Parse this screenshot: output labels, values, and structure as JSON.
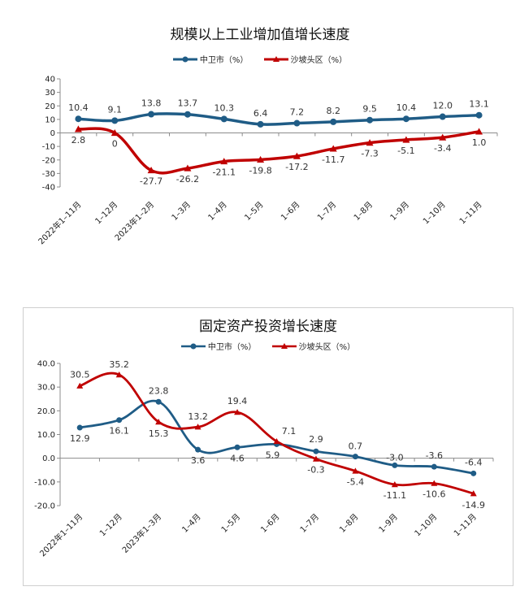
{
  "chart_data": [
    {
      "type": "line",
      "title": "规模以上工业增加值增长速度",
      "categories": [
        "2022年1–11月",
        "1–12月",
        "2023年1–2月",
        "1–3月",
        "1–4月",
        "1–5月",
        "1–6月",
        "1–7月",
        "1–8月",
        "1–9月",
        "1–10月",
        "1–11月"
      ],
      "series": [
        {
          "name": "中卫市（%）",
          "values": [
            10.4,
            9.1,
            13.8,
            13.7,
            10.3,
            6.4,
            7.2,
            8.2,
            9.5,
            10.4,
            12.0,
            13.1
          ],
          "labels": [
            "10.4",
            "9.1",
            "13.8",
            "13.7",
            "10.3",
            "6.4",
            "7.2",
            "8.2",
            "9.5",
            "10.4",
            "12.0",
            "13.1"
          ],
          "color": "#1f5c86"
        },
        {
          "name": "沙坡头区（%）",
          "values": [
            2.8,
            0,
            -27.7,
            -26.2,
            -21.1,
            -19.8,
            -17.2,
            -11.7,
            -7.3,
            -5.1,
            -3.4,
            1.0
          ],
          "labels": [
            "2.8",
            "0",
            "-27.7",
            "-26.2",
            "-21.1",
            "-19.8",
            "-17.2",
            "-11.7",
            "-7.3",
            "-5.1",
            "-3.4",
            "1.0"
          ],
          "color": "#c00000"
        }
      ],
      "ylim": [
        -40,
        40
      ],
      "yticks": [
        "40",
        "30",
        "20",
        "10",
        "0",
        "-10",
        "-20",
        "-30",
        "-40"
      ],
      "legend": "top",
      "grid": false
    },
    {
      "type": "line",
      "title": "固定资产投资增长速度",
      "categories": [
        "2022年1–11月",
        "1–12月",
        "2023年1–3月",
        "1–4月",
        "1–5月",
        "1–6月",
        "1–7月",
        "1–8月",
        "1–9月",
        "1–10月",
        "1–11月"
      ],
      "series": [
        {
          "name": "中卫市（%）",
          "values": [
            12.9,
            16.1,
            23.8,
            3.6,
            4.6,
            5.9,
            2.9,
            0.7,
            -3.0,
            -3.6,
            -6.4
          ],
          "labels": [
            "12.9",
            "16.1",
            "23.8",
            "3.6",
            "4.6",
            "5.9",
            "2.9",
            "0.7",
            "-3.0",
            "-3.6",
            "-6.4"
          ],
          "color": "#1f5c86"
        },
        {
          "name": "沙坡头区（%）",
          "values": [
            30.5,
            35.2,
            15.3,
            13.2,
            19.4,
            7.1,
            -0.3,
            -5.4,
            -11.1,
            -10.6,
            -14.9
          ],
          "labels": [
            "30.5",
            "35.2",
            "15.3",
            "13.2",
            "19.4",
            "7.1",
            "-0.3",
            "-5.4",
            "-11.1",
            "-10.6",
            "-14.9"
          ],
          "color": "#c00000"
        }
      ],
      "ylim": [
        -20,
        40
      ],
      "yticks": [
        "40.0",
        "30.0",
        "20.0",
        "10.0",
        "0.0",
        "-10.0",
        "-20.0"
      ],
      "legend": "top",
      "grid": false
    }
  ]
}
